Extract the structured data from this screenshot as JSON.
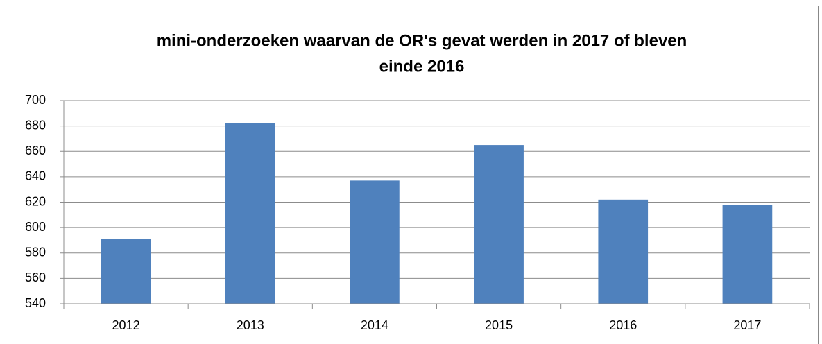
{
  "chart_data": {
    "type": "bar",
    "title": [
      "mini-onderzoeken waarvan de OR's gevat werden in 2017 of bleven",
      "einde 2016"
    ],
    "categories": [
      "2012",
      "2013",
      "2014",
      "2015",
      "2016",
      "2017"
    ],
    "values": [
      591,
      682,
      637,
      665,
      622,
      618
    ],
    "color": "#4f81bd",
    "ylim": [
      540,
      700
    ],
    "yticks": [
      540,
      560,
      580,
      600,
      620,
      640,
      660,
      680,
      700
    ],
    "grid": true
  }
}
